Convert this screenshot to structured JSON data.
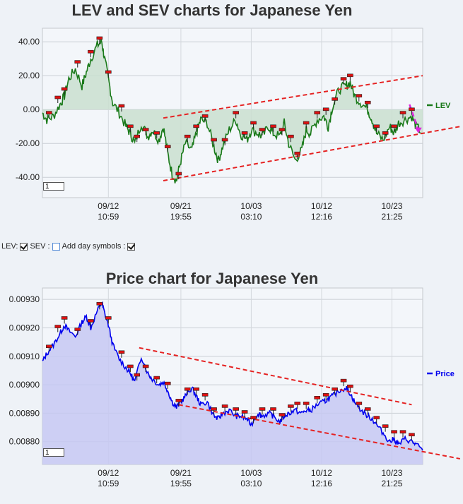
{
  "top_chart": {
    "title": "LEV and SEV charts for Japanese Yen",
    "legend_label": "LEV",
    "zoom_value": "1"
  },
  "controls": {
    "lev_label": "LEV:",
    "lev_checked": true,
    "sev_label": "SEV :",
    "sev_checked": false,
    "day_symbols_label": "Add day symbols :",
    "day_symbols_checked": true
  },
  "bottom_chart": {
    "title": "Price chart for Japanese Yen",
    "legend_label": "Price",
    "zoom_value": "1"
  },
  "colors": {
    "lev_line": "#1a7a1a",
    "lev_fill": "#c9dfcf",
    "price_line": "#0000ee",
    "price_fill": "#c6c8f2",
    "trendline": "#e52222",
    "forecast_arrow": "#dd22dd",
    "marker_fill": "#dd1111"
  },
  "chart_data": [
    {
      "type": "line",
      "title": "LEV and SEV charts for Japanese Yen",
      "xlabel": "",
      "ylabel": "",
      "ylim": [
        -52,
        48
      ],
      "yticks": [
        "40.00",
        "20.00",
        "0.00",
        "-20.00",
        "-40.00"
      ],
      "ytick_values": [
        40,
        20,
        0,
        -20,
        -40
      ],
      "xticks": [
        {
          "t": 0.3,
          "date": "09/12",
          "time": "10:59"
        },
        {
          "t": 0.63,
          "date": "09/21",
          "time": "19:55"
        },
        {
          "t": 0.95,
          "date": "10/03",
          "time": "03:10"
        },
        {
          "t": 1.27,
          "date": "10/12",
          "time": "12:16"
        },
        {
          "t": 1.59,
          "date": "10/23",
          "time": "21:25"
        }
      ],
      "grid": true,
      "legend": "right",
      "series": [
        {
          "name": "LEV",
          "x": [
            0.0,
            0.02,
            0.05,
            0.08,
            0.1,
            0.12,
            0.15,
            0.18,
            0.2,
            0.22,
            0.25,
            0.27,
            0.28,
            0.3,
            0.32,
            0.35,
            0.38,
            0.4,
            0.42,
            0.45,
            0.48,
            0.5,
            0.53,
            0.55,
            0.57,
            0.59,
            0.61,
            0.63,
            0.65,
            0.68,
            0.7,
            0.72,
            0.75,
            0.78,
            0.8,
            0.82,
            0.85,
            0.88,
            0.9,
            0.93,
            0.95,
            0.98,
            1.0,
            1.03,
            1.05,
            1.08,
            1.1,
            1.12,
            1.15,
            1.18,
            1.2,
            1.22,
            1.25,
            1.28,
            1.3,
            1.32,
            1.35,
            1.38,
            1.4,
            1.42,
            1.45,
            1.48,
            1.5,
            1.52,
            1.55,
            1.58,
            1.6,
            1.62,
            1.65,
            1.68,
            1.7,
            1.73
          ],
          "values": [
            -2,
            -6,
            -4,
            3,
            8,
            18,
            24,
            14,
            22,
            30,
            38,
            40,
            32,
            18,
            4,
            -2,
            -10,
            -14,
            -20,
            -8,
            -16,
            -12,
            -18,
            -10,
            -26,
            -38,
            -42,
            -30,
            -20,
            -24,
            -14,
            -6,
            -8,
            -22,
            -30,
            -22,
            -12,
            -6,
            -14,
            -18,
            -12,
            -14,
            -16,
            -10,
            -14,
            -16,
            -8,
            -20,
            -30,
            -24,
            -12,
            -14,
            -6,
            -4,
            -10,
            2,
            12,
            14,
            16,
            8,
            4,
            0,
            -6,
            -14,
            -18,
            -10,
            -14,
            -8,
            -6,
            -4,
            -10,
            -14
          ]
        }
      ],
      "markers_x": [
        0.03,
        0.07,
        0.1,
        0.16,
        0.22,
        0.26,
        0.3,
        0.36,
        0.4,
        0.43,
        0.47,
        0.52,
        0.57,
        0.62,
        0.66,
        0.7,
        0.74,
        0.78,
        0.83,
        0.88,
        0.92,
        0.96,
        1.0,
        1.05,
        1.09,
        1.13,
        1.16,
        1.2,
        1.25,
        1.29,
        1.33,
        1.37,
        1.4,
        1.44,
        1.48,
        1.52,
        1.56,
        1.6,
        1.64,
        1.68
      ],
      "trendlines": [
        {
          "x": [
            0.55,
            1.73
          ],
          "y": [
            -5,
            20
          ]
        },
        {
          "x": [
            0.55,
            1.9
          ],
          "y": [
            -42,
            -10
          ]
        }
      ],
      "forecast_arrow": {
        "x": [
          1.67,
          1.71
        ],
        "y": [
          3,
          -14
        ]
      }
    },
    {
      "type": "area",
      "title": "Price chart for Japanese Yen",
      "xlabel": "",
      "ylabel": "",
      "ylim": [
        0.00872,
        0.00934
      ],
      "yticks": [
        "0.00930",
        "0.00920",
        "0.00910",
        "0.00900",
        "0.00890",
        "0.00880"
      ],
      "ytick_values": [
        0.0093,
        0.0092,
        0.0091,
        0.009,
        0.0089,
        0.0088
      ],
      "xticks": [
        {
          "t": 0.3,
          "date": "09/12",
          "time": "10:59"
        },
        {
          "t": 0.63,
          "date": "09/21",
          "time": "19:55"
        },
        {
          "t": 0.95,
          "date": "10/03",
          "time": "03:10"
        },
        {
          "t": 1.27,
          "date": "10/12",
          "time": "12:16"
        },
        {
          "t": 1.59,
          "date": "10/23",
          "time": "21:25"
        }
      ],
      "grid": true,
      "legend": "right",
      "series": [
        {
          "name": "Price",
          "x": [
            0.0,
            0.02,
            0.05,
            0.08,
            0.1,
            0.12,
            0.15,
            0.18,
            0.2,
            0.22,
            0.25,
            0.27,
            0.28,
            0.3,
            0.32,
            0.35,
            0.38,
            0.4,
            0.42,
            0.45,
            0.48,
            0.5,
            0.53,
            0.55,
            0.57,
            0.59,
            0.61,
            0.63,
            0.65,
            0.68,
            0.7,
            0.72,
            0.75,
            0.78,
            0.8,
            0.82,
            0.85,
            0.88,
            0.9,
            0.93,
            0.95,
            0.98,
            1.0,
            1.03,
            1.05,
            1.08,
            1.1,
            1.12,
            1.15,
            1.18,
            1.2,
            1.22,
            1.25,
            1.28,
            1.3,
            1.32,
            1.35,
            1.38,
            1.4,
            1.42,
            1.45,
            1.48,
            1.5,
            1.52,
            1.55,
            1.58,
            1.6,
            1.62,
            1.65,
            1.68,
            1.7,
            1.73
          ],
          "values": [
            0.00908,
            0.00911,
            0.00914,
            0.00918,
            0.00921,
            0.00919,
            0.00917,
            0.00922,
            0.00924,
            0.0092,
            0.00926,
            0.00929,
            0.00926,
            0.00921,
            0.00914,
            0.00909,
            0.00906,
            0.00904,
            0.00901,
            0.0091,
            0.00904,
            0.00902,
            0.009,
            0.00901,
            0.00898,
            0.00894,
            0.00892,
            0.00894,
            0.00896,
            0.00899,
            0.00896,
            0.00893,
            0.00894,
            0.00889,
            0.00888,
            0.0089,
            0.00891,
            0.00889,
            0.00889,
            0.00888,
            0.00886,
            0.0089,
            0.00889,
            0.0089,
            0.00889,
            0.00887,
            0.00889,
            0.0089,
            0.00891,
            0.0089,
            0.00891,
            0.00891,
            0.00893,
            0.00894,
            0.00895,
            0.00896,
            0.00898,
            0.00899,
            0.00897,
            0.00894,
            0.00891,
            0.00889,
            0.00888,
            0.00886,
            0.00883,
            0.0088,
            0.00881,
            0.00879,
            0.00881,
            0.0088,
            0.00879,
            0.00877
          ]
        }
      ],
      "markers_x": [
        0.03,
        0.07,
        0.1,
        0.16,
        0.22,
        0.26,
        0.3,
        0.36,
        0.4,
        0.43,
        0.47,
        0.52,
        0.57,
        0.62,
        0.66,
        0.7,
        0.74,
        0.78,
        0.83,
        0.88,
        0.92,
        0.96,
        1.0,
        1.05,
        1.09,
        1.13,
        1.16,
        1.2,
        1.25,
        1.29,
        1.33,
        1.37,
        1.4,
        1.44,
        1.48,
        1.52,
        1.56,
        1.6,
        1.64,
        1.68
      ],
      "trendlines": [
        {
          "x": [
            0.44,
            1.68
          ],
          "y": [
            0.00913,
            0.00893
          ]
        },
        {
          "x": [
            0.62,
            1.9
          ],
          "y": [
            0.00893,
            0.00874
          ]
        }
      ]
    }
  ]
}
